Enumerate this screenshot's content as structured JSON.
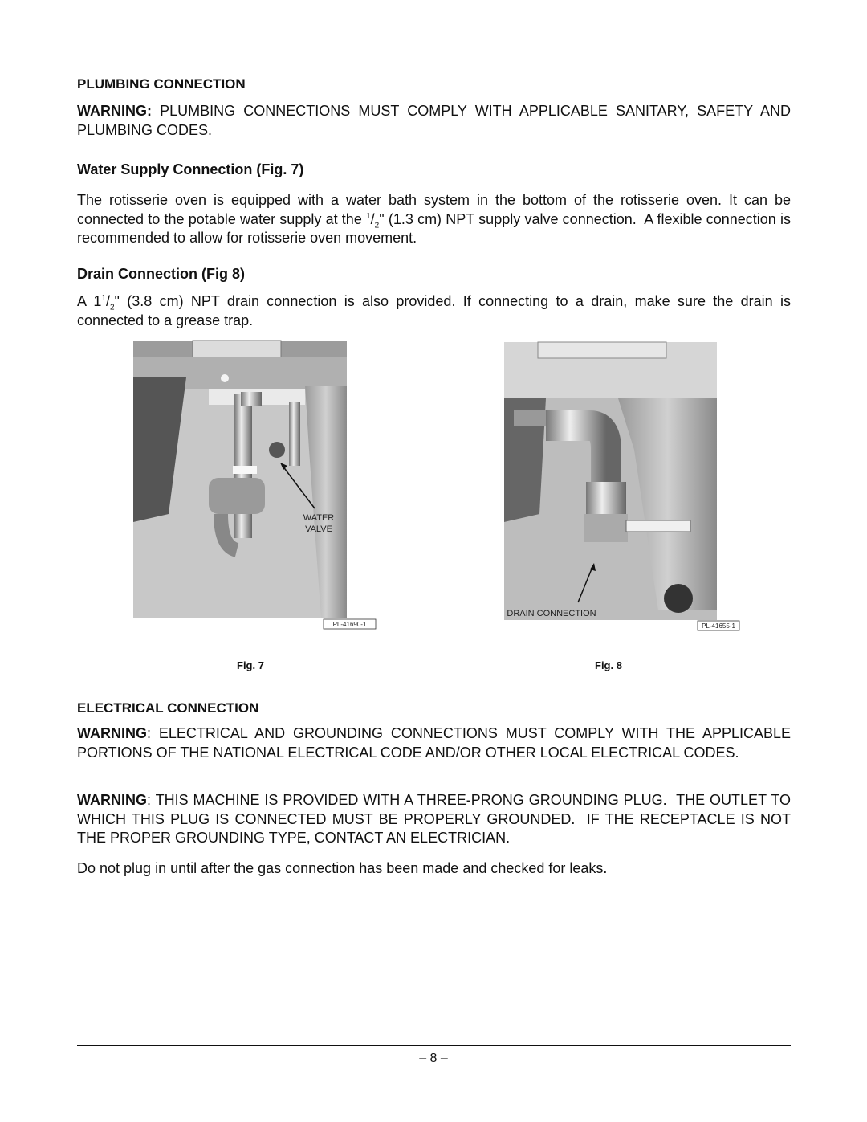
{
  "plumbing": {
    "heading": "PLUMBING CONNECTION",
    "warning": {
      "label": "WARNING:",
      "text": " PLUMBING CONNECTIONS MUST COMPLY WITH APPLICABLE SANITARY, SAFETY AND PLUMBING CODES."
    },
    "water_supply": {
      "heading": "Water Supply Connection (Fig. 7)",
      "text_before": "The rotisserie oven is equipped with a water bath system in the bottom of the rotisserie oven. It can be connected to the potable water supply at the ",
      "fraction": {
        "numerator": "1",
        "slash": "/",
        "denominator": "2"
      },
      "text_after": "\" (1.3 cm) NPT supply valve connection.  A flexible connection is recommended to allow for rotisserie oven movement."
    },
    "drain": {
      "heading": "Drain Connection (Fig 8)",
      "text_before": "A 1",
      "fraction": {
        "numerator": "1",
        "slash": "/",
        "denominator": "2"
      },
      "text_after": "\" (3.8 cm) NPT drain connection is also provided. If connecting to a drain, make sure the drain is connected to a grease trap."
    }
  },
  "figures": [
    {
      "labels": [
        "WATER",
        "VALVE"
      ],
      "code": "PL-41690-1",
      "caption": "Fig. 7"
    },
    {
      "labels": [
        "DRAIN CONNECTION"
      ],
      "code": "PL-41655-1",
      "caption": "Fig. 8"
    }
  ],
  "electrical": {
    "heading": "ELECTRICAL CONNECTION",
    "warnings": [
      {
        "label": "WARNING",
        "text": ": ELECTRICAL AND GROUNDING CONNECTIONS MUST COMPLY WITH THE APPLICABLE PORTIONS OF THE NATIONAL ELECTRICAL CODE AND/OR OTHER LOCAL ELECTRICAL CODES."
      },
      {
        "label": "WARNING",
        "text": ": THIS MACHINE IS PROVIDED WITH A THREE-PRONG GROUNDING PLUG.  THE OUTLET TO WHICH THIS PLUG IS CONNECTED MUST BE PROPERLY GROUNDED.  IF THE RECEPTACLE IS NOT THE PROPER GROUNDING TYPE, CONTACT AN ELECTRICIAN."
      }
    ],
    "note": "Do not plug in until after the gas connection has been made and checked for leaks."
  },
  "footer": {
    "page": "– 8 –"
  }
}
